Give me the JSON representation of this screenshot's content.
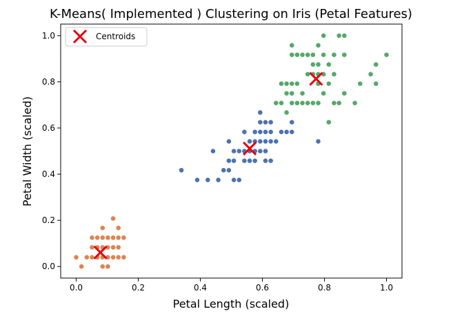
{
  "chart_data": {
    "type": "scatter",
    "title": "K-Means( Implemented ) Clustering on Iris (Petal Features)",
    "xlabel": "Petal Length (scaled)",
    "ylabel": "Petal Width (scaled)",
    "xlim": [
      -0.05,
      1.05
    ],
    "ylim": [
      -0.05,
      1.05
    ],
    "xticks": [
      "0.0",
      "0.2",
      "0.4",
      "0.6",
      "0.8",
      "1.0"
    ],
    "yticks": [
      "0.0",
      "0.2",
      "0.4",
      "0.6",
      "0.8",
      "1.0"
    ],
    "grid": false,
    "legend": {
      "location": "upper-left",
      "entries": [
        "Centroids"
      ]
    },
    "series": [
      {
        "color": "#dd8452",
        "points": [
          [
            0.0,
            0.04
          ],
          [
            0.017,
            0.0
          ],
          [
            0.034,
            0.04
          ],
          [
            0.051,
            0.04
          ],
          [
            0.051,
            0.083
          ],
          [
            0.051,
            0.125
          ],
          [
            0.068,
            0.04
          ],
          [
            0.068,
            0.083
          ],
          [
            0.068,
            0.125
          ],
          [
            0.085,
            0.0
          ],
          [
            0.085,
            0.04
          ],
          [
            0.085,
            0.083
          ],
          [
            0.085,
            0.125
          ],
          [
            0.102,
            0.0
          ],
          [
            0.102,
            0.04
          ],
          [
            0.102,
            0.083
          ],
          [
            0.102,
            0.125
          ],
          [
            0.119,
            0.04
          ],
          [
            0.119,
            0.083
          ],
          [
            0.119,
            0.125
          ],
          [
            0.119,
            0.208
          ],
          [
            0.136,
            0.04
          ],
          [
            0.136,
            0.083
          ],
          [
            0.136,
            0.125
          ],
          [
            0.136,
            0.167
          ],
          [
            0.153,
            0.04
          ],
          [
            0.153,
            0.125
          ],
          [
            0.085,
            0.167
          ]
        ]
      },
      {
        "color": "#4c72b0",
        "points": [
          [
            0.339,
            0.417
          ],
          [
            0.39,
            0.375
          ],
          [
            0.424,
            0.375
          ],
          [
            0.441,
            0.5
          ],
          [
            0.458,
            0.375
          ],
          [
            0.475,
            0.417
          ],
          [
            0.492,
            0.417
          ],
          [
            0.492,
            0.458
          ],
          [
            0.492,
            0.542
          ],
          [
            0.508,
            0.458
          ],
          [
            0.508,
            0.5
          ],
          [
            0.508,
            0.375
          ],
          [
            0.525,
            0.5
          ],
          [
            0.525,
            0.375
          ],
          [
            0.542,
            0.458
          ],
          [
            0.542,
            0.5
          ],
          [
            0.542,
            0.583
          ],
          [
            0.559,
            0.5
          ],
          [
            0.559,
            0.542
          ],
          [
            0.576,
            0.458
          ],
          [
            0.576,
            0.5
          ],
          [
            0.576,
            0.542
          ],
          [
            0.576,
            0.583
          ],
          [
            0.593,
            0.5
          ],
          [
            0.593,
            0.542
          ],
          [
            0.593,
            0.583
          ],
          [
            0.593,
            0.625
          ],
          [
            0.593,
            0.667
          ],
          [
            0.61,
            0.458
          ],
          [
            0.61,
            0.5
          ],
          [
            0.61,
            0.542
          ],
          [
            0.61,
            0.583
          ],
          [
            0.61,
            0.625
          ],
          [
            0.627,
            0.458
          ],
          [
            0.627,
            0.542
          ],
          [
            0.627,
            0.583
          ],
          [
            0.627,
            0.625
          ],
          [
            0.644,
            0.542
          ],
          [
            0.661,
            0.583
          ],
          [
            0.678,
            0.583
          ],
          [
            0.695,
            0.583
          ],
          [
            0.695,
            0.625
          ],
          [
            0.78,
            0.542
          ],
          [
            0.559,
            0.458
          ],
          [
            0.576,
            0.5
          ]
        ]
      },
      {
        "color": "#55a868",
        "points": [
          [
            0.644,
            0.708
          ],
          [
            0.661,
            0.708
          ],
          [
            0.661,
            0.792
          ],
          [
            0.678,
            0.667
          ],
          [
            0.678,
            0.75
          ],
          [
            0.678,
            0.792
          ],
          [
            0.695,
            0.708
          ],
          [
            0.695,
            0.75
          ],
          [
            0.695,
            0.792
          ],
          [
            0.695,
            0.917
          ],
          [
            0.695,
            0.958
          ],
          [
            0.712,
            0.792
          ],
          [
            0.712,
            0.917
          ],
          [
            0.729,
            0.75
          ],
          [
            0.729,
            0.917
          ],
          [
            0.746,
            0.833
          ],
          [
            0.746,
            0.917
          ],
          [
            0.763,
            0.708
          ],
          [
            0.763,
            0.833
          ],
          [
            0.763,
            0.875
          ],
          [
            0.78,
            0.708
          ],
          [
            0.78,
            0.792
          ],
          [
            0.78,
            0.875
          ],
          [
            0.78,
            0.958
          ],
          [
            0.797,
            0.833
          ],
          [
            0.797,
            0.917
          ],
          [
            0.797,
            1.0
          ],
          [
            0.814,
            0.625
          ],
          [
            0.814,
            0.875
          ],
          [
            0.831,
            0.708
          ],
          [
            0.831,
            0.833
          ],
          [
            0.831,
            0.917
          ],
          [
            0.847,
            0.708
          ],
          [
            0.847,
            1.0
          ],
          [
            0.864,
            0.75
          ],
          [
            0.864,
            0.917
          ],
          [
            0.864,
            1.0
          ],
          [
            0.898,
            0.708
          ],
          [
            0.915,
            0.792
          ],
          [
            0.949,
            0.833
          ],
          [
            0.966,
            0.792
          ],
          [
            0.966,
            0.875
          ],
          [
            1.0,
            0.917
          ],
          [
            0.746,
            0.708
          ],
          [
            0.712,
            0.708
          ],
          [
            0.763,
            0.917
          ],
          [
            0.729,
            0.708
          ],
          [
            0.78,
            0.833
          ],
          [
            0.797,
            0.75
          ],
          [
            0.814,
            0.792
          ]
        ]
      }
    ],
    "centroids": {
      "name": "Centroids",
      "color": "#e8000b",
      "marker": "x",
      "points": [
        [
          0.078,
          0.061
        ],
        [
          0.559,
          0.511
        ],
        [
          0.773,
          0.813
        ]
      ]
    }
  }
}
